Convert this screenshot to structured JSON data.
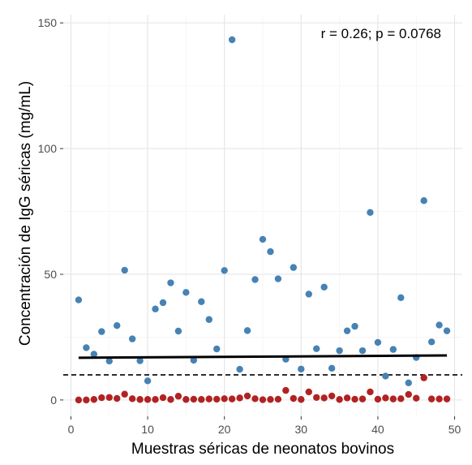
{
  "chart_data": {
    "type": "scatter",
    "title": "",
    "xlabel": "Muestras séricas de neonatos bovinos",
    "ylabel": "Concentración de IgG séricas (mg/mL)",
    "xlim": [
      -1,
      51
    ],
    "ylim": [
      -6.5,
      150
    ],
    "x_ticks": [
      0,
      10,
      20,
      30,
      40,
      50
    ],
    "y_ticks": [
      0,
      50,
      100,
      150
    ],
    "grid": true,
    "annotation": "r = 0.26; p = 0.0768",
    "colors": {
      "blue": "#4682b4",
      "red": "#b22222",
      "trend": "#000000",
      "threshold": "#000000"
    },
    "threshold_line": {
      "y": 10,
      "style": "dashed"
    },
    "trend_line": {
      "x": [
        1,
        49
      ],
      "y": [
        16.8,
        17.7
      ]
    },
    "series": [
      {
        "color": "blue",
        "points": [
          [
            1,
            39.8
          ],
          [
            2,
            20.8
          ],
          [
            3,
            18.2
          ],
          [
            4,
            27.2
          ],
          [
            5,
            15.5
          ],
          [
            6,
            29.6
          ],
          [
            7,
            51.6
          ],
          [
            8,
            24.3
          ],
          [
            9,
            15.6
          ],
          [
            10,
            7.6
          ],
          [
            11,
            36.2
          ],
          [
            12,
            38.7
          ],
          [
            13,
            46.6
          ],
          [
            14,
            27.4
          ],
          [
            15,
            42.8
          ],
          [
            16,
            15.8
          ],
          [
            17,
            39.1
          ],
          [
            18,
            32.0
          ],
          [
            19,
            20.3
          ],
          [
            20,
            51.5
          ],
          [
            21,
            143.3
          ],
          [
            22,
            12.2
          ],
          [
            23,
            27.6
          ],
          [
            24,
            47.9
          ],
          [
            25,
            63.9
          ],
          [
            26,
            59.0
          ],
          [
            27,
            48.2
          ],
          [
            28,
            16.2
          ],
          [
            29,
            52.7
          ],
          [
            30,
            12.3
          ],
          [
            31,
            42.1
          ],
          [
            32,
            20.4
          ],
          [
            33,
            44.9
          ],
          [
            34,
            12.6
          ],
          [
            35,
            19.6
          ],
          [
            36,
            27.5
          ],
          [
            37,
            29.3
          ],
          [
            38,
            19.6
          ],
          [
            39,
            74.6
          ],
          [
            40,
            22.9
          ],
          [
            41,
            9.5
          ],
          [
            42,
            20.1
          ],
          [
            43,
            40.7
          ],
          [
            44,
            6.8
          ],
          [
            45,
            16.9
          ],
          [
            46,
            79.3
          ],
          [
            47,
            23.1
          ],
          [
            48,
            29.8
          ],
          [
            49,
            27.5
          ]
        ]
      },
      {
        "color": "red",
        "points": [
          [
            1,
            0.0
          ],
          [
            2,
            0.0
          ],
          [
            3,
            0.2
          ],
          [
            4,
            0.9
          ],
          [
            5,
            1.0
          ],
          [
            6,
            0.6
          ],
          [
            7,
            2.3
          ],
          [
            8,
            0.5
          ],
          [
            9,
            0.2
          ],
          [
            10,
            0.2
          ],
          [
            11,
            0.2
          ],
          [
            12,
            0.9
          ],
          [
            13,
            0.2
          ],
          [
            14,
            1.5
          ],
          [
            15,
            0.2
          ],
          [
            16,
            0.3
          ],
          [
            17,
            0.2
          ],
          [
            18,
            0.4
          ],
          [
            19,
            0.3
          ],
          [
            20,
            0.5
          ],
          [
            21,
            0.4
          ],
          [
            22,
            0.8
          ],
          [
            23,
            1.6
          ],
          [
            24,
            0.5
          ],
          [
            25,
            0.1
          ],
          [
            26,
            0.2
          ],
          [
            27,
            0.3
          ],
          [
            28,
            3.8
          ],
          [
            29,
            0.6
          ],
          [
            30,
            0.2
          ],
          [
            31,
            3.2
          ],
          [
            32,
            1.0
          ],
          [
            33,
            0.8
          ],
          [
            34,
            1.6
          ],
          [
            35,
            0.2
          ],
          [
            36,
            0.8
          ],
          [
            37,
            0.3
          ],
          [
            38,
            0.4
          ],
          [
            39,
            3.2
          ],
          [
            40,
            0.3
          ],
          [
            41,
            0.8
          ],
          [
            42,
            0.4
          ],
          [
            43,
            0.5
          ],
          [
            44,
            2.2
          ],
          [
            45,
            0.7
          ],
          [
            46,
            8.8
          ],
          [
            47,
            0.4
          ],
          [
            48,
            0.4
          ],
          [
            49,
            0.4
          ]
        ]
      }
    ]
  }
}
